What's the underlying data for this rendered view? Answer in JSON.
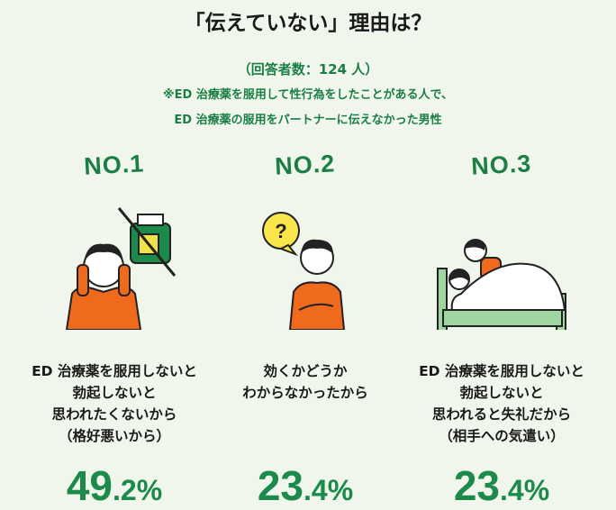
{
  "title": "「伝えていない」理由は？",
  "respondents": "（回答者数：124 人）",
  "note_lines": [
    "※ED 治療薬を服用して性行為をしたことがある人で、",
    "ED 治療薬の服用をパートナーに伝えなかった男性"
  ],
  "colors": {
    "accent_green": "#1b8a4a",
    "orange": "#f06a1e",
    "background": "#f0f6ec"
  },
  "rankings": [
    {
      "rank": "NO.1",
      "illustration": "man-covering-ears-with-crossed-out-pill-bottle",
      "reason_lines": [
        "ED 治療薬を服用しないと",
        "勃起しないと",
        "思われたくないから",
        "（格好悪いから）"
      ],
      "percent_int": "49",
      "percent_dec": ".2%",
      "value": 49.2
    },
    {
      "rank": "NO.2",
      "illustration": "man-thinking-with-question-bubble",
      "reason_lines": [
        "効くかどうか",
        "わからなかったから"
      ],
      "percent_int": "23",
      "percent_dec": ".4%",
      "value": 23.4
    },
    {
      "rank": "NO.3",
      "illustration": "couple-in-bed",
      "reason_lines": [
        "ED 治療薬を服用しないと",
        "勃起しないと",
        "思われると失礼だから",
        "（相手への気遣い）"
      ],
      "percent_int": "23",
      "percent_dec": ".4%",
      "value": 23.4
    }
  ]
}
